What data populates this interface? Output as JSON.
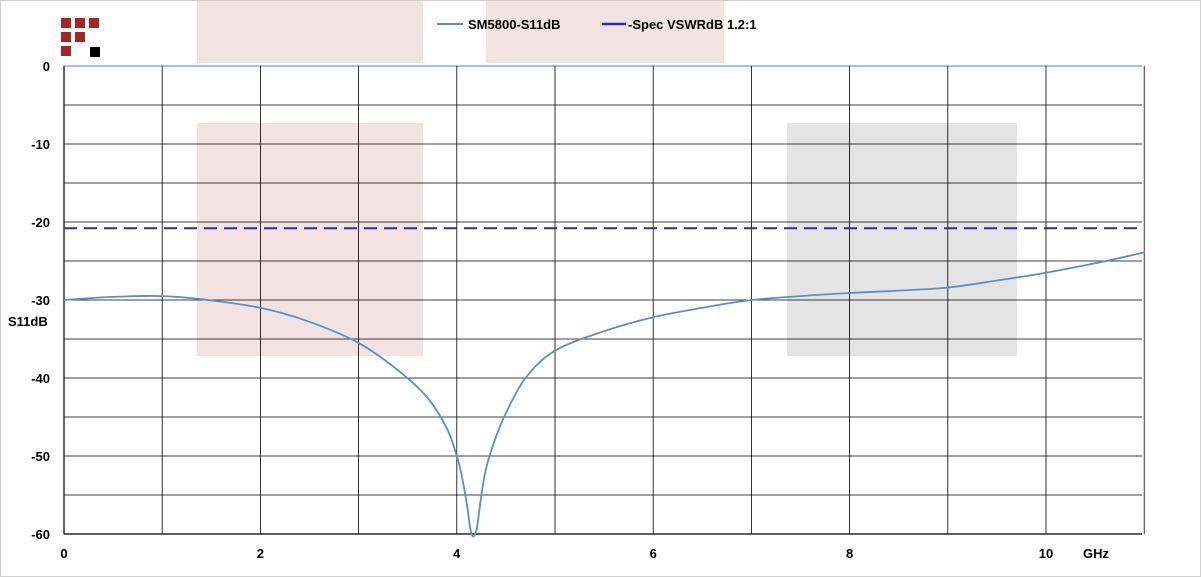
{
  "chart_data": {
    "type": "line",
    "title": "",
    "xlabel": "GHz",
    "ylabel": "S11dB",
    "xlim": [
      0,
      11
    ],
    "ylim": [
      -60,
      0
    ],
    "x_ticks": [
      0,
      2,
      4,
      6,
      8,
      10
    ],
    "x_tick_labels": [
      "0",
      "2",
      "4",
      "6",
      "8",
      "10"
    ],
    "y_ticks": [
      0,
      -10,
      -20,
      -30,
      -40,
      -50,
      -60
    ],
    "y_tick_labels": [
      "0",
      "-10",
      "-20",
      "-30",
      "-40",
      "-50",
      "-60"
    ],
    "grid": true,
    "legend_position": "top-center",
    "series": [
      {
        "name": "SM5800-S11dB",
        "color": "#5b8fc7",
        "style": "solid",
        "x": [
          0,
          0.5,
          1.0,
          1.4,
          2.0,
          2.5,
          3.0,
          3.4,
          3.7,
          3.9,
          4.0,
          4.05,
          4.1,
          4.15,
          4.2,
          4.25,
          4.3,
          4.4,
          4.5,
          4.7,
          5.0,
          5.5,
          6.0,
          6.5,
          7.0,
          7.5,
          8.0,
          8.5,
          9.0,
          9.5,
          10.0,
          10.5,
          11.0
        ],
        "y": [
          -30.0,
          -29.6,
          -29.5,
          -29.9,
          -31.0,
          -32.8,
          -35.5,
          -39.0,
          -42.5,
          -46.5,
          -50.0,
          -52.5,
          -56.0,
          -60.0,
          -59.5,
          -55.0,
          -51.5,
          -47.5,
          -44.5,
          -40.0,
          -36.5,
          -34.0,
          -32.2,
          -31.0,
          -30.0,
          -29.5,
          -29.1,
          -28.8,
          -28.4,
          -27.5,
          -26.5,
          -25.3,
          -23.9
        ]
      },
      {
        "name": "-Spec VSWRdB 1.2:1",
        "color": "#2b2bb0",
        "style": "dashed",
        "x": [
          0,
          11
        ],
        "y": [
          -20.8,
          -20.8
        ]
      }
    ]
  },
  "colors": {
    "background": "#ffffff",
    "grid": "#000000",
    "band_pink": "#f2e2e2",
    "band_gray": "#e4e4e4",
    "logo_red": "#a52525",
    "logo_black": "#000000"
  }
}
